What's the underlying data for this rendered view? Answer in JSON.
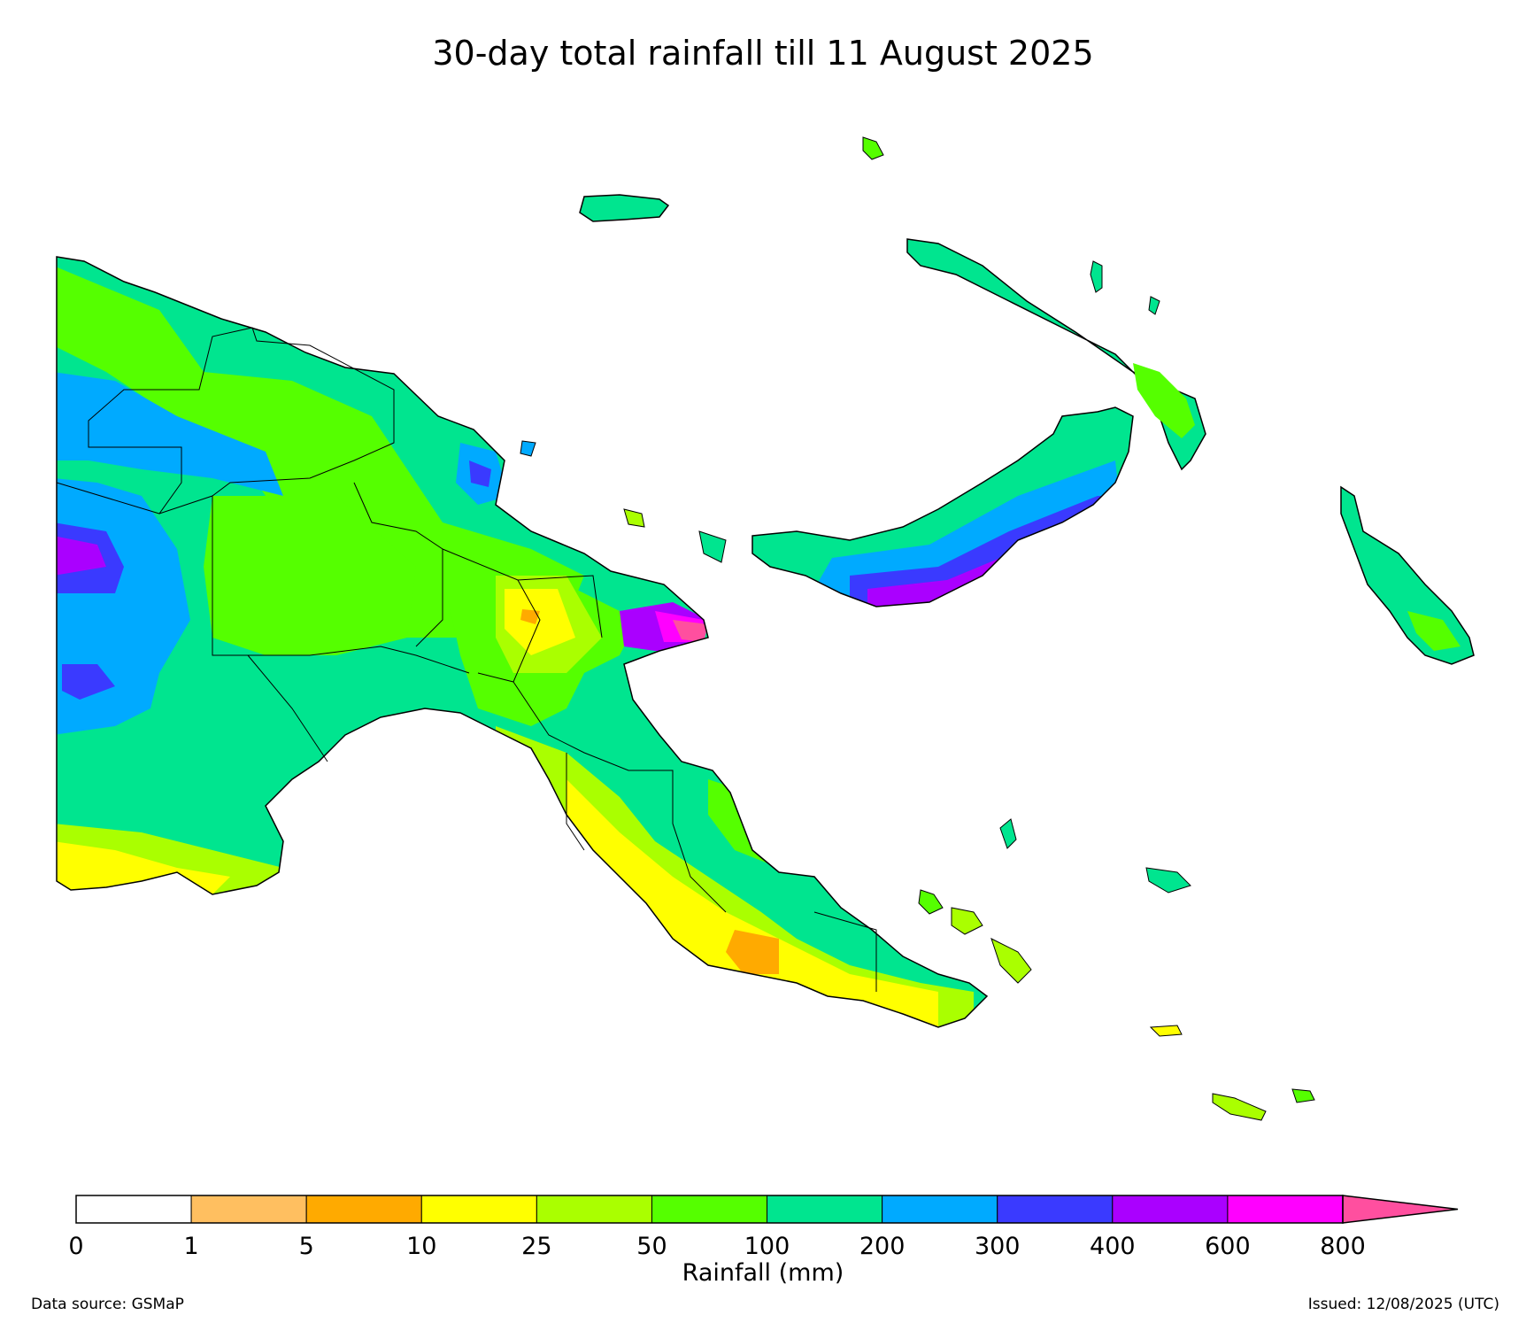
{
  "title": "30-day total rainfall till 11 August 2025",
  "colorbar": {
    "label": "Rainfall (mm)",
    "ticks": [
      "0",
      "1",
      "5",
      "10",
      "25",
      "50",
      "100",
      "200",
      "300",
      "400",
      "600",
      "800"
    ],
    "colors": [
      "#ffffff",
      "#ffbf60",
      "#ffaa00",
      "#ffff00",
      "#aaff00",
      "#55ff00",
      "#00e58f",
      "#00aaff",
      "#3a3aff",
      "#aa00ff",
      "#ff00ff"
    ],
    "extend_color": "#ff4f9f"
  },
  "footer": {
    "source": "Data source: GSMaP",
    "issued": "Issued: 12/08/2025 (UTC)"
  }
}
